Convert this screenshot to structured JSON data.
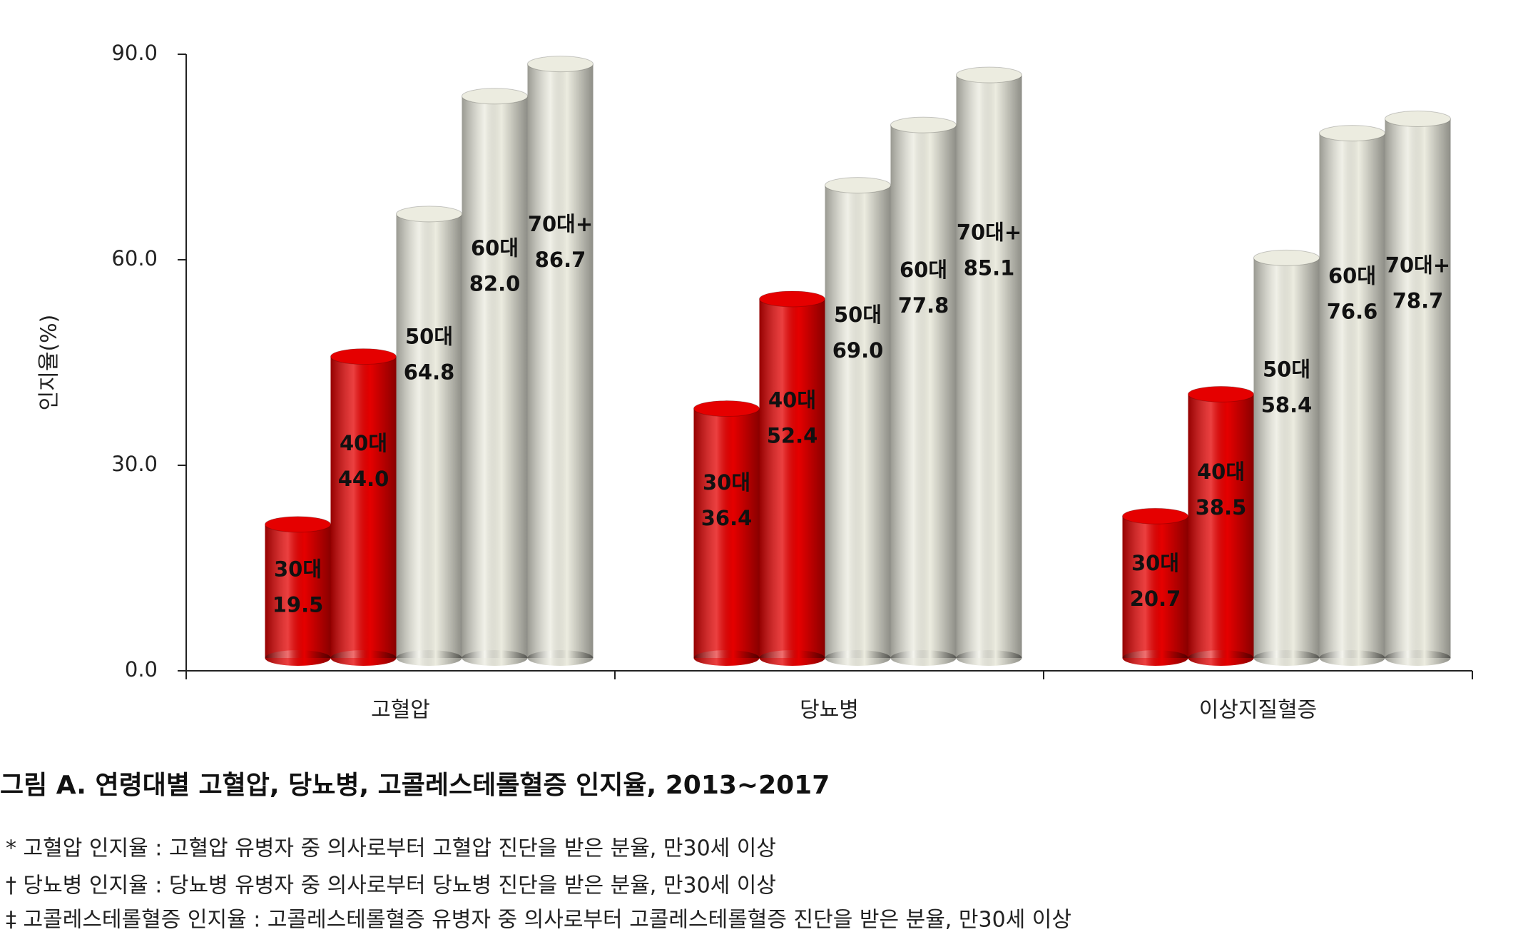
{
  "chart_data": {
    "type": "bar",
    "y_label": "인지율(%)",
    "categories": [
      "고혈압",
      "당뇨병",
      "이상지질혈증"
    ],
    "series": [
      {
        "name": "30대",
        "color": "#e50000",
        "values": [
          19.5,
          36.4,
          20.7
        ],
        "value_labels": [
          "19.5",
          "36.4",
          "20.7"
        ]
      },
      {
        "name": "40대",
        "color": "#e50000",
        "values": [
          44.0,
          52.4,
          38.5
        ],
        "value_labels": [
          "44.0",
          "52.4",
          "38.5"
        ]
      },
      {
        "name": "50대",
        "color": "#ecece0",
        "values": [
          64.8,
          69.0,
          58.4
        ],
        "value_labels": [
          "64.8",
          "69.0",
          "58.4"
        ]
      },
      {
        "name": "60대",
        "color": "#ecece0",
        "values": [
          82.0,
          77.8,
          76.6
        ],
        "value_labels": [
          "82.0",
          "77.8",
          "76.6"
        ]
      },
      {
        "name": "70대+",
        "color": "#ecece0",
        "values": [
          86.7,
          85.1,
          78.7
        ],
        "value_labels": [
          "86.7",
          "85.1",
          "78.7"
        ]
      }
    ],
    "ylim": [
      0,
      90
    ],
    "yticks": [
      {
        "value": 0,
        "label": "0.0"
      },
      {
        "value": 30,
        "label": "30.0"
      },
      {
        "value": 60,
        "label": "60.0"
      },
      {
        "value": 90,
        "label": "90.0"
      }
    ],
    "caption": "그림 A. 연령대별 고혈압, 당뇨병, 고콜레스테롤혈증 인지율, 2013~2017",
    "footnotes": [
      "* 고혈압 인지율 : 고혈압 유병자 중 의사로부터 고혈압 진단을 받은 분율, 만30세 이상",
      "† 당뇨병 인지율 : 당뇨병 유병자 중 의사로부터 당뇨병 진단을 받은 분율, 만30세 이상",
      "‡ 고콜레스테롤혈증 인지율 : 고콜레스테롤혈증 유병자 중 의사로부터 고콜레스테롤혈증 진단을 받은 분율, 만30세 이상"
    ]
  }
}
